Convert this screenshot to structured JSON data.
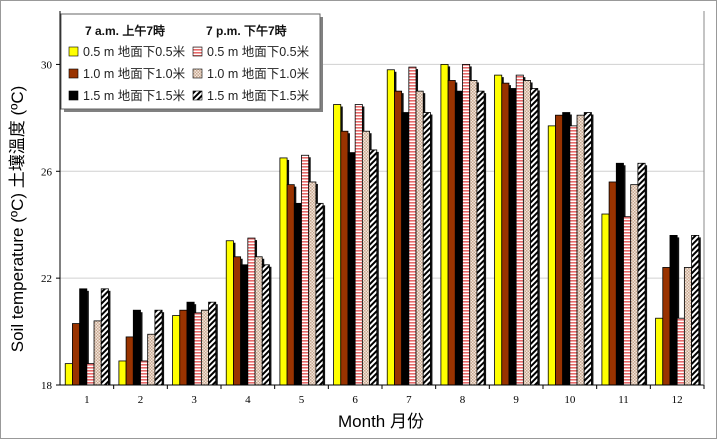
{
  "chart_data": {
    "type": "bar",
    "title": "",
    "xlabel": "Month 月份",
    "ylabel": "Soil temperature (ºC) 土壤溫度 (ºC)",
    "ylim": [
      18,
      32
    ],
    "yticks": [
      18,
      22,
      26,
      30
    ],
    "grid": true,
    "legend_position": "top-left",
    "legend_headers": [
      "7 a.m. 上午7時",
      "7 p.m. 下午7時"
    ],
    "categories": [
      "1",
      "2",
      "3",
      "4",
      "5",
      "6",
      "7",
      "8",
      "9",
      "10",
      "11",
      "12"
    ],
    "series": [
      {
        "name": "0.5 m 地面下0.5米",
        "group": "7 a.m.",
        "color": "#ffff00",
        "pattern": "solid",
        "values": [
          18.8,
          18.9,
          20.6,
          23.4,
          26.5,
          28.5,
          29.8,
          30.0,
          29.6,
          27.7,
          24.4,
          20.5
        ]
      },
      {
        "name": "1.0 m 地面下1.0米",
        "group": "7 a.m.",
        "color": "#993300",
        "pattern": "solid",
        "values": [
          20.3,
          19.8,
          20.8,
          22.8,
          25.5,
          27.5,
          29.0,
          29.4,
          29.3,
          28.1,
          25.6,
          22.4
        ]
      },
      {
        "name": "1.5 m 地面下1.5米",
        "group": "7 a.m.",
        "color": "#000000",
        "pattern": "solid",
        "values": [
          21.6,
          20.8,
          21.1,
          22.5,
          24.8,
          26.7,
          28.2,
          29.0,
          29.1,
          28.2,
          26.3,
          23.6
        ]
      },
      {
        "name": "0.5 m 地面下0.5米",
        "group": "7 p.m.",
        "color": "#e86a6a",
        "pattern": "hstripe",
        "values": [
          18.8,
          18.9,
          20.7,
          23.5,
          26.6,
          28.5,
          29.9,
          30.0,
          29.6,
          27.7,
          24.3,
          20.5
        ]
      },
      {
        "name": "1.0 m 地面下1.0米",
        "group": "7 p.m.",
        "color": "#c8a890",
        "pattern": "checker",
        "values": [
          20.4,
          19.9,
          20.8,
          22.8,
          25.6,
          27.5,
          29.0,
          29.4,
          29.4,
          28.1,
          25.5,
          22.4
        ]
      },
      {
        "name": "1.5 m 地面下1.5米",
        "group": "7 p.m.",
        "color": "#000000",
        "pattern": "diagonal",
        "values": [
          21.6,
          20.8,
          21.1,
          22.5,
          24.8,
          26.8,
          28.2,
          29.0,
          29.1,
          28.2,
          26.3,
          23.6
        ]
      }
    ]
  }
}
